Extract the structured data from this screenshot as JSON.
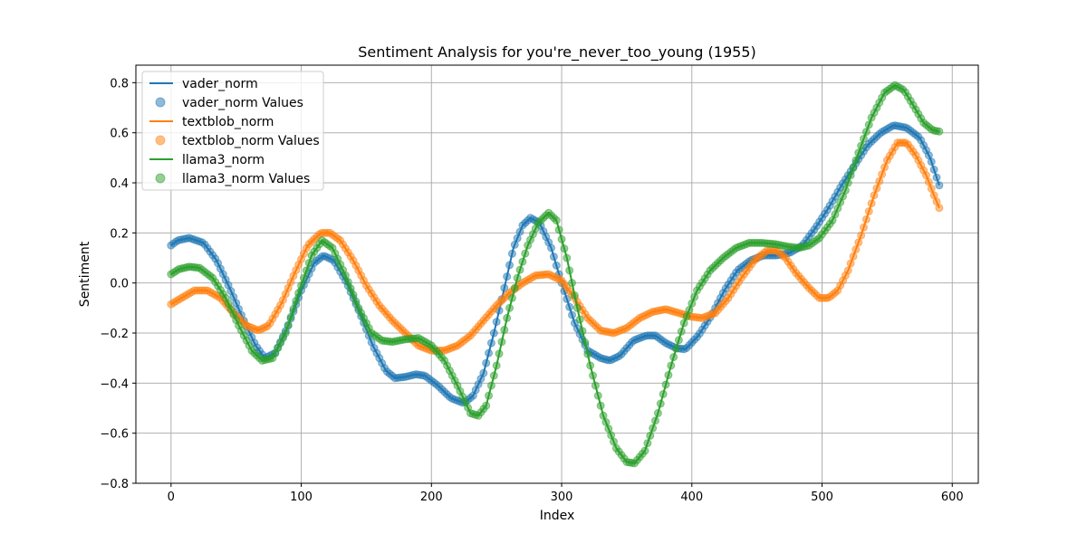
{
  "chart_data": {
    "type": "line",
    "title": "Sentiment Analysis for you're_never_too_young (1955)",
    "xlabel": "Index",
    "ylabel": "Sentiment",
    "xlim": [
      -27,
      620
    ],
    "ylim": [
      -0.8,
      0.87
    ],
    "xticks": [
      0,
      100,
      200,
      300,
      400,
      500,
      600
    ],
    "yticks": [
      -0.8,
      -0.6,
      -0.4,
      -0.2,
      0.0,
      0.2,
      0.4,
      0.6,
      0.8
    ],
    "xtick_labels": [
      "0",
      "100",
      "200",
      "300",
      "400",
      "500",
      "600"
    ],
    "ytick_labels": [
      "−0.8",
      "−0.6",
      "−0.4",
      "−0.2",
      "0.0",
      "0.2",
      "0.4",
      "0.6",
      "0.8"
    ],
    "grid": true,
    "legend_position": "top-left",
    "series": [
      {
        "name": "vader_norm",
        "values_name": "vader_norm Values",
        "color": "#1f77b4",
        "points": [
          [
            0,
            0.15
          ],
          [
            5,
            0.17
          ],
          [
            14,
            0.18
          ],
          [
            25,
            0.16
          ],
          [
            35,
            0.09
          ],
          [
            45,
            -0.02
          ],
          [
            55,
            -0.14
          ],
          [
            65,
            -0.25
          ],
          [
            72,
            -0.3
          ],
          [
            80,
            -0.28
          ],
          [
            90,
            -0.17
          ],
          [
            100,
            -0.03
          ],
          [
            110,
            0.08
          ],
          [
            117,
            0.11
          ],
          [
            125,
            0.09
          ],
          [
            135,
            0.0
          ],
          [
            145,
            -0.12
          ],
          [
            155,
            -0.25
          ],
          [
            165,
            -0.35
          ],
          [
            172,
            -0.38
          ],
          [
            180,
            -0.375
          ],
          [
            188,
            -0.365
          ],
          [
            195,
            -0.37
          ],
          [
            205,
            -0.41
          ],
          [
            215,
            -0.46
          ],
          [
            225,
            -0.48
          ],
          [
            232,
            -0.45
          ],
          [
            240,
            -0.36
          ],
          [
            248,
            -0.2
          ],
          [
            256,
            -0.02
          ],
          [
            263,
            0.14
          ],
          [
            270,
            0.23
          ],
          [
            276,
            0.26
          ],
          [
            283,
            0.24
          ],
          [
            292,
            0.14
          ],
          [
            300,
            0.0
          ],
          [
            310,
            -0.16
          ],
          [
            320,
            -0.27
          ],
          [
            330,
            -0.3
          ],
          [
            337,
            -0.31
          ],
          [
            345,
            -0.29
          ],
          [
            355,
            -0.23
          ],
          [
            365,
            -0.21
          ],
          [
            372,
            -0.21
          ],
          [
            380,
            -0.24
          ],
          [
            388,
            -0.26
          ],
          [
            395,
            -0.265
          ],
          [
            405,
            -0.21
          ],
          [
            415,
            -0.13
          ],
          [
            425,
            -0.03
          ],
          [
            435,
            0.05
          ],
          [
            445,
            0.09
          ],
          [
            455,
            0.11
          ],
          [
            465,
            0.11
          ],
          [
            475,
            0.12
          ],
          [
            485,
            0.15
          ],
          [
            495,
            0.22
          ],
          [
            505,
            0.3
          ],
          [
            515,
            0.39
          ],
          [
            525,
            0.47
          ],
          [
            535,
            0.55
          ],
          [
            545,
            0.6
          ],
          [
            555,
            0.63
          ],
          [
            565,
            0.62
          ],
          [
            575,
            0.58
          ],
          [
            583,
            0.5
          ],
          [
            590,
            0.39
          ]
        ]
      },
      {
        "name": "textblob_norm",
        "values_name": "textblob_norm Values",
        "color": "#ff7f0e",
        "points": [
          [
            0,
            -0.085
          ],
          [
            8,
            -0.06
          ],
          [
            18,
            -0.03
          ],
          [
            28,
            -0.03
          ],
          [
            38,
            -0.06
          ],
          [
            48,
            -0.12
          ],
          [
            58,
            -0.17
          ],
          [
            67,
            -0.19
          ],
          [
            75,
            -0.17
          ],
          [
            85,
            -0.08
          ],
          [
            95,
            0.04
          ],
          [
            105,
            0.15
          ],
          [
            115,
            0.2
          ],
          [
            122,
            0.2
          ],
          [
            130,
            0.17
          ],
          [
            140,
            0.09
          ],
          [
            150,
            -0.01
          ],
          [
            160,
            -0.09
          ],
          [
            170,
            -0.15
          ],
          [
            180,
            -0.2
          ],
          [
            190,
            -0.25
          ],
          [
            200,
            -0.27
          ],
          [
            210,
            -0.27
          ],
          [
            220,
            -0.25
          ],
          [
            230,
            -0.21
          ],
          [
            240,
            -0.15
          ],
          [
            250,
            -0.09
          ],
          [
            260,
            -0.04
          ],
          [
            270,
            0.0
          ],
          [
            280,
            0.03
          ],
          [
            290,
            0.035
          ],
          [
            300,
            0.01
          ],
          [
            310,
            -0.06
          ],
          [
            320,
            -0.14
          ],
          [
            330,
            -0.19
          ],
          [
            340,
            -0.2
          ],
          [
            350,
            -0.18
          ],
          [
            360,
            -0.14
          ],
          [
            370,
            -0.115
          ],
          [
            380,
            -0.105
          ],
          [
            390,
            -0.12
          ],
          [
            400,
            -0.135
          ],
          [
            408,
            -0.14
          ],
          [
            418,
            -0.12
          ],
          [
            428,
            -0.06
          ],
          [
            438,
            0.02
          ],
          [
            448,
            0.09
          ],
          [
            458,
            0.13
          ],
          [
            465,
            0.13
          ],
          [
            472,
            0.1
          ],
          [
            480,
            0.04
          ],
          [
            490,
            -0.02
          ],
          [
            498,
            -0.06
          ],
          [
            505,
            -0.06
          ],
          [
            512,
            -0.03
          ],
          [
            520,
            0.05
          ],
          [
            530,
            0.19
          ],
          [
            540,
            0.35
          ],
          [
            550,
            0.49
          ],
          [
            558,
            0.56
          ],
          [
            565,
            0.56
          ],
          [
            572,
            0.51
          ],
          [
            580,
            0.43
          ],
          [
            586,
            0.35
          ],
          [
            590,
            0.3
          ]
        ]
      },
      {
        "name": "llama3_norm",
        "values_name": "llama3_norm Values",
        "color": "#2ca02c",
        "points": [
          [
            0,
            0.035
          ],
          [
            6,
            0.055
          ],
          [
            14,
            0.065
          ],
          [
            22,
            0.06
          ],
          [
            32,
            0.02
          ],
          [
            42,
            -0.06
          ],
          [
            52,
            -0.17
          ],
          [
            62,
            -0.27
          ],
          [
            70,
            -0.31
          ],
          [
            78,
            -0.3
          ],
          [
            88,
            -0.2
          ],
          [
            98,
            -0.04
          ],
          [
            108,
            0.11
          ],
          [
            116,
            0.17
          ],
          [
            124,
            0.14
          ],
          [
            134,
            0.03
          ],
          [
            144,
            -0.1
          ],
          [
            154,
            -0.2
          ],
          [
            162,
            -0.23
          ],
          [
            170,
            -0.235
          ],
          [
            180,
            -0.225
          ],
          [
            190,
            -0.22
          ],
          [
            200,
            -0.25
          ],
          [
            210,
            -0.31
          ],
          [
            220,
            -0.41
          ],
          [
            230,
            -0.52
          ],
          [
            236,
            -0.53
          ],
          [
            242,
            -0.49
          ],
          [
            250,
            -0.33
          ],
          [
            258,
            -0.14
          ],
          [
            266,
            0.02
          ],
          [
            274,
            0.15
          ],
          [
            282,
            0.24
          ],
          [
            290,
            0.28
          ],
          [
            296,
            0.25
          ],
          [
            304,
            0.1
          ],
          [
            312,
            -0.1
          ],
          [
            322,
            -0.33
          ],
          [
            332,
            -0.53
          ],
          [
            342,
            -0.66
          ],
          [
            350,
            -0.715
          ],
          [
            356,
            -0.72
          ],
          [
            364,
            -0.67
          ],
          [
            374,
            -0.52
          ],
          [
            384,
            -0.33
          ],
          [
            394,
            -0.16
          ],
          [
            404,
            -0.03
          ],
          [
            414,
            0.05
          ],
          [
            424,
            0.1
          ],
          [
            434,
            0.14
          ],
          [
            444,
            0.16
          ],
          [
            454,
            0.16
          ],
          [
            464,
            0.155
          ],
          [
            474,
            0.145
          ],
          [
            482,
            0.14
          ],
          [
            490,
            0.15
          ],
          [
            498,
            0.18
          ],
          [
            508,
            0.25
          ],
          [
            518,
            0.37
          ],
          [
            528,
            0.52
          ],
          [
            538,
            0.66
          ],
          [
            548,
            0.76
          ],
          [
            556,
            0.79
          ],
          [
            563,
            0.77
          ],
          [
            570,
            0.71
          ],
          [
            578,
            0.64
          ],
          [
            585,
            0.61
          ],
          [
            590,
            0.605
          ]
        ]
      }
    ]
  }
}
